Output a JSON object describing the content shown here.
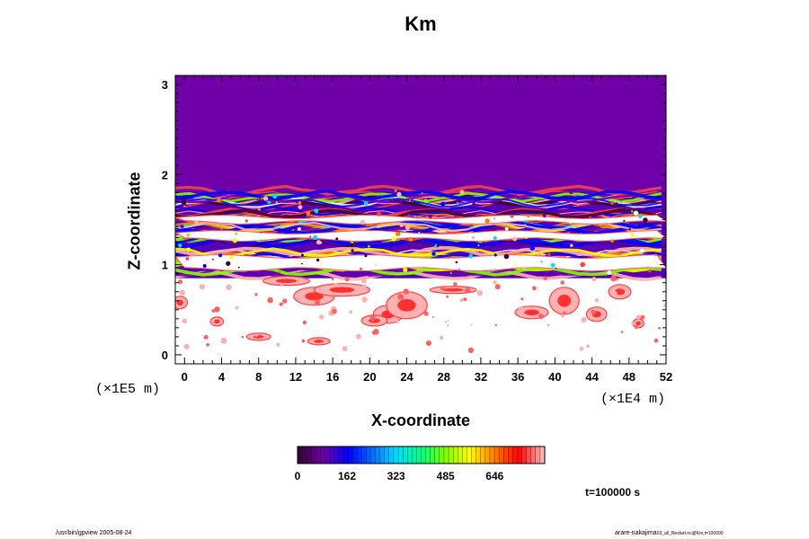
{
  "chart_data": {
    "type": "heatmap",
    "title": "Km",
    "xlabel": "X-coordinate",
    "ylabel": "Z-coordinate",
    "x_ticks": [
      "0",
      "4",
      "8",
      "12",
      "16",
      "20",
      "24",
      "28",
      "32",
      "36",
      "40",
      "44",
      "48",
      "52"
    ],
    "y_ticks": [
      "0",
      "1",
      "2",
      "3"
    ],
    "x_scale_note": "(×1E4 m)",
    "y_scale_note": "(×1E5 m)",
    "xlim": [
      -1,
      52
    ],
    "ylim": [
      -0.1,
      3.1
    ],
    "colorbar_ticks": [
      "0",
      "162",
      "323",
      "485",
      "646"
    ],
    "colorbar_range": [
      0,
      810
    ],
    "colormap": [
      "#3b003b",
      "#6c00a8",
      "#0000ff",
      "#0070ff",
      "#00e0ff",
      "#00ff80",
      "#80ff00",
      "#ffff00",
      "#ff8000",
      "#ff0000",
      "#ffb0b0"
    ],
    "background_color": "#7000a8",
    "time_label": "t=100000 s"
  },
  "footer": {
    "left": "/usr/bin/gpview 2005-08-24",
    "right_main": "arare-nakajima",
    "right_sub": "03_all_Restart.nc@Km,t=100000"
  }
}
